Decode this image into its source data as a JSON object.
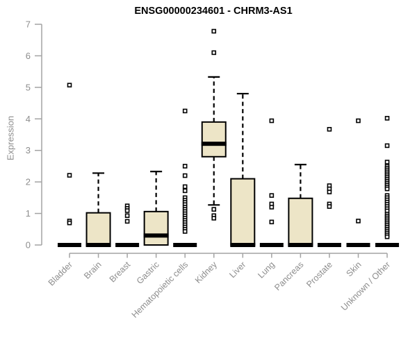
{
  "chart_data": {
    "type": "boxplot",
    "title": "ENSG00000234601 - CHRM3-AS1",
    "ylabel": "Expression",
    "xlabel": "",
    "ylim": [
      0,
      7
    ],
    "yticks": [
      0,
      1,
      2,
      3,
      4,
      5,
      6,
      7
    ],
    "grid": false,
    "legend": "none",
    "colors": {
      "box_fill": "#EDE5C7",
      "box_stroke": "#000000",
      "median": "#000000",
      "whisker": "#000000",
      "outlier_stroke": "#000000",
      "outlier_fill": "#FFFFFF",
      "axis_line": "#A3A3A3",
      "tick_label": "#8D8D8D",
      "title_color": "#000000"
    },
    "categories": [
      "Bladder",
      "Brain",
      "Breast",
      "Gastric",
      "Hematopoietic cells",
      "Kidney",
      "Liver",
      "Lung",
      "Pancreas",
      "Prostate",
      "Skin",
      "Unknown / Other"
    ],
    "series": [
      {
        "name": "Bladder",
        "q1": 0,
        "median": 0,
        "q3": 0,
        "whisker_low": 0,
        "whisker_high": 0,
        "outliers": [
          5.07,
          2.21,
          0.76,
          0.7
        ]
      },
      {
        "name": "Brain",
        "q1": 0,
        "median": 0,
        "q3": 1.02,
        "whisker_low": 0,
        "whisker_high": 2.28,
        "outliers": []
      },
      {
        "name": "Breast",
        "q1": 0,
        "median": 0,
        "q3": 0,
        "whisker_low": 0,
        "whisker_high": 0,
        "outliers": [
          1.24,
          1.16,
          1.09,
          0.93,
          0.75
        ]
      },
      {
        "name": "Gastric",
        "q1": 0,
        "median": 0.3,
        "q3": 1.06,
        "whisker_low": 0,
        "whisker_high": 2.33,
        "outliers": []
      },
      {
        "name": "Hematopoietic cells",
        "q1": 0,
        "median": 0,
        "q3": 0,
        "whisker_low": 0,
        "whisker_high": 0,
        "outliers": [
          4.25,
          2.5,
          2.2,
          1.85,
          1.72,
          1.5,
          1.42,
          1.35,
          1.28,
          1.2,
          1.13,
          1.06,
          0.99,
          0.92,
          0.85,
          0.78,
          0.71,
          0.64,
          0.57,
          0.5,
          0.43
        ]
      },
      {
        "name": "Kidney",
        "q1": 2.8,
        "median": 3.21,
        "q3": 3.9,
        "whisker_low": 1.27,
        "whisker_high": 5.33,
        "outliers": [
          6.78,
          6.1,
          1.13,
          0.93,
          0.85
        ]
      },
      {
        "name": "Liver",
        "q1": 0,
        "median": 0,
        "q3": 2.1,
        "whisker_low": 0,
        "whisker_high": 4.8,
        "outliers": []
      },
      {
        "name": "Lung",
        "q1": 0,
        "median": 0,
        "q3": 0,
        "whisker_low": 0,
        "whisker_high": 0,
        "outliers": [
          3.94,
          1.57,
          1.3,
          1.2,
          0.73
        ]
      },
      {
        "name": "Pancreas",
        "q1": 0,
        "median": 0,
        "q3": 1.48,
        "whisker_low": 0,
        "whisker_high": 2.55,
        "outliers": []
      },
      {
        "name": "Prostate",
        "q1": 0,
        "median": 0,
        "q3": 0,
        "whisker_low": 0,
        "whisker_high": 0,
        "outliers": [
          3.67,
          1.88,
          1.78,
          1.68,
          1.3,
          1.22
        ]
      },
      {
        "name": "Skin",
        "q1": 0,
        "median": 0,
        "q3": 0,
        "whisker_low": 0,
        "whisker_high": 0,
        "outliers": [
          3.94,
          0.76
        ]
      },
      {
        "name": "Unknown / Other",
        "q1": 0,
        "median": 0,
        "q3": 0,
        "whisker_low": 0,
        "whisker_high": 0,
        "outliers": [
          4.02,
          3.15,
          2.63,
          2.5,
          2.44,
          2.38,
          2.32,
          2.26,
          2.2,
          2.14,
          2.08,
          2.02,
          1.96,
          1.9,
          1.84,
          1.78,
          1.57,
          1.5,
          1.43,
          1.36,
          1.29,
          1.22,
          1.15,
          1.08,
          0.98,
          0.92,
          0.86,
          0.8,
          0.74,
          0.68,
          0.62,
          0.56,
          0.5,
          0.44,
          0.38,
          0.32,
          0.26
        ]
      }
    ]
  }
}
